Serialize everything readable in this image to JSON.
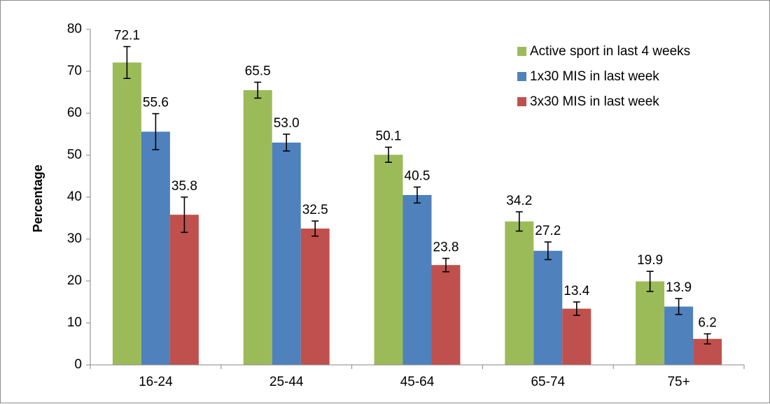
{
  "chart_data": {
    "type": "bar",
    "title": "",
    "xlabel": "",
    "ylabel": "Percentage",
    "ylim": [
      0,
      80
    ],
    "yticks": [
      0,
      10,
      20,
      30,
      40,
      50,
      60,
      70,
      80
    ],
    "categories": [
      "16-24",
      "25-44",
      "45-64",
      "65-74",
      "75+"
    ],
    "series": [
      {
        "name": "Active sport in last 4 weeks",
        "color": "#9bbb59",
        "values": [
          72.1,
          65.5,
          50.1,
          34.2,
          19.9
        ],
        "labels": [
          "72.1",
          "65.5",
          "50.1",
          "34.2",
          "19.9"
        ],
        "error_low": [
          68.3,
          63.6,
          48.3,
          31.9,
          17.5
        ],
        "error_high": [
          75.9,
          67.4,
          51.9,
          36.5,
          22.3
        ]
      },
      {
        "name": "1x30 MIS in last week",
        "color": "#4f81bd",
        "values": [
          55.6,
          53.0,
          40.5,
          27.2,
          13.9
        ],
        "labels": [
          "55.6",
          "53.0",
          "40.5",
          "27.2",
          "13.9"
        ],
        "error_low": [
          51.3,
          51.0,
          38.6,
          25.1,
          12.0
        ],
        "error_high": [
          59.9,
          55.0,
          42.4,
          29.3,
          15.8
        ]
      },
      {
        "name": "3x30 MIS in last week",
        "color": "#c0504d",
        "values": [
          35.8,
          32.5,
          23.8,
          13.4,
          6.2
        ],
        "labels": [
          "35.8",
          "32.5",
          "23.8",
          "13.4",
          "6.2"
        ],
        "error_low": [
          31.6,
          30.7,
          22.2,
          11.8,
          5.0
        ],
        "error_high": [
          40.0,
          34.3,
          25.4,
          15.0,
          7.4
        ]
      }
    ],
    "legend": "top-right",
    "grid": false,
    "axis_color": "#868686"
  }
}
